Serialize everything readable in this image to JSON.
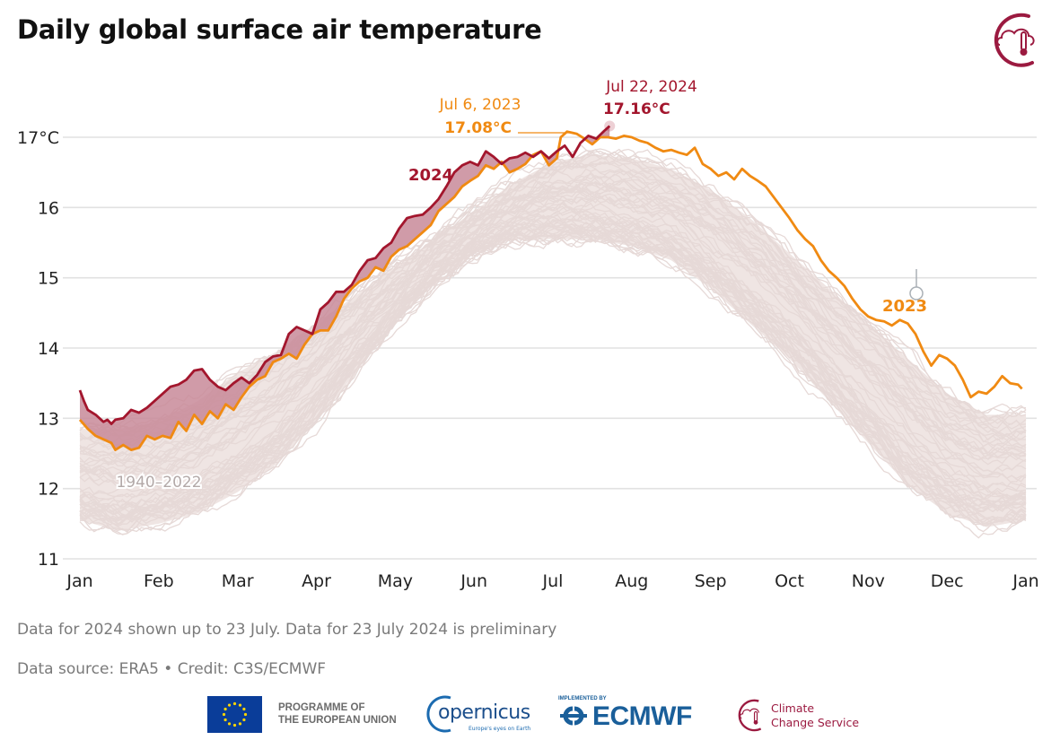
{
  "title": "Daily global surface air temperature",
  "notes": {
    "line1": "Data for 2024 shown up to 23 July. Data for 23 July 2024 is preliminary",
    "line2": "Data source: ERA5 • Credit: C3S/ECMWF"
  },
  "logos": {
    "eu_text_line1": "PROGRAMME OF",
    "eu_text_line2": "THE EUROPEAN UNION",
    "copernicus": "opernicus",
    "copernicus_sub": "Europe's eyes on Earth",
    "ecmwf_impl": "IMPLEMENTED BY",
    "ecmwf": "ECMWF",
    "c3s_line1": "Climate",
    "c3s_line2": "Change Service",
    "top_icon": "c3s-thermometer-cloud-icon"
  },
  "colors": {
    "y2023": "#f08a12",
    "y2024": "#a3162d",
    "fill_2024_above": "#c88a99",
    "historical": "#e6d9d7",
    "grid": "#e2e2e2",
    "text": "#222222",
    "note": "#7a7a7a"
  },
  "chart_data": {
    "type": "line",
    "title": "Daily global surface air temperature",
    "xlabel": "",
    "ylabel": "°C",
    "ylim": [
      11,
      17.2
    ],
    "xlim_months": [
      0,
      12
    ],
    "grid": true,
    "yticks": [
      11,
      12,
      13,
      14,
      15,
      16,
      17
    ],
    "ytick_labels": [
      "11",
      "12",
      "13",
      "14",
      "15",
      "16",
      "17°C"
    ],
    "xtick_labels": [
      "Jan",
      "Feb",
      "Mar",
      "Apr",
      "May",
      "Jun",
      "Jul",
      "Aug",
      "Sep",
      "Oct",
      "Nov",
      "Dec",
      "Jan"
    ],
    "historical_label": "1940–2022",
    "historical_band": {
      "month": [
        0,
        0.5,
        1,
        1.5,
        2,
        2.5,
        3,
        3.5,
        4,
        4.5,
        5,
        5.5,
        6,
        6.5,
        7,
        7.5,
        8,
        8.5,
        9,
        9.5,
        10,
        10.5,
        11,
        11.5,
        12
      ],
      "upper": [
        12.9,
        12.9,
        13.0,
        13.3,
        13.7,
        14.0,
        14.4,
        14.8,
        15.2,
        15.6,
        16.0,
        16.4,
        16.7,
        16.8,
        16.75,
        16.6,
        16.3,
        15.9,
        15.4,
        14.9,
        14.4,
        13.9,
        13.4,
        13.1,
        13.1
      ],
      "lower": [
        11.5,
        11.35,
        11.45,
        11.6,
        11.9,
        12.3,
        12.9,
        13.6,
        14.3,
        14.9,
        15.3,
        15.5,
        15.5,
        15.5,
        15.4,
        15.2,
        14.8,
        14.3,
        13.8,
        13.2,
        12.6,
        12.0,
        11.6,
        11.4,
        11.5
      ]
    },
    "series": [
      {
        "name": "2023",
        "label": "2023",
        "month": [
          0,
          0.1,
          0.2,
          0.3,
          0.4,
          0.45,
          0.55,
          0.65,
          0.75,
          0.85,
          0.95,
          1.05,
          1.15,
          1.25,
          1.35,
          1.45,
          1.55,
          1.65,
          1.75,
          1.85,
          1.95,
          2.05,
          2.15,
          2.25,
          2.35,
          2.45,
          2.55,
          2.65,
          2.75,
          2.85,
          2.95,
          3.05,
          3.15,
          3.25,
          3.35,
          3.45,
          3.55,
          3.65,
          3.75,
          3.85,
          3.95,
          4.05,
          4.15,
          4.25,
          4.35,
          4.45,
          4.55,
          4.65,
          4.75,
          4.85,
          4.95,
          5.05,
          5.15,
          5.25,
          5.35,
          5.45,
          5.55,
          5.65,
          5.75,
          5.85,
          5.95,
          6.05,
          6.1,
          6.18,
          6.3,
          6.4,
          6.5,
          6.6,
          6.7,
          6.8,
          6.9,
          7.0,
          7.1,
          7.2,
          7.3,
          7.4,
          7.5,
          7.6,
          7.7,
          7.8,
          7.9,
          8.0,
          8.1,
          8.2,
          8.3,
          8.4,
          8.5,
          8.6,
          8.7,
          8.8,
          8.9,
          9.0,
          9.1,
          9.2,
          9.3,
          9.4,
          9.5,
          9.6,
          9.7,
          9.8,
          9.9,
          10.0,
          10.1,
          10.2,
          10.3,
          10.4,
          10.5,
          10.6,
          10.7,
          10.8,
          10.9,
          11.0,
          11.1,
          11.2,
          11.3,
          11.4,
          11.5,
          11.6,
          11.7,
          11.8,
          11.9,
          11.95
        ],
        "values": [
          12.98,
          12.85,
          12.75,
          12.7,
          12.65,
          12.55,
          12.62,
          12.55,
          12.58,
          12.75,
          12.7,
          12.75,
          12.72,
          12.95,
          12.82,
          13.05,
          12.92,
          13.1,
          13.0,
          13.2,
          13.12,
          13.3,
          13.45,
          13.55,
          13.6,
          13.8,
          13.85,
          13.92,
          13.85,
          14.05,
          14.2,
          14.25,
          14.25,
          14.45,
          14.7,
          14.85,
          14.95,
          15.0,
          15.15,
          15.1,
          15.3,
          15.4,
          15.45,
          15.55,
          15.65,
          15.75,
          15.95,
          16.05,
          16.15,
          16.3,
          16.38,
          16.45,
          16.6,
          16.55,
          16.65,
          16.5,
          16.55,
          16.62,
          16.75,
          16.8,
          16.6,
          16.7,
          17.0,
          17.08,
          17.05,
          16.98,
          16.9,
          17.0,
          17.0,
          16.98,
          17.02,
          17.0,
          16.95,
          16.92,
          16.85,
          16.8,
          16.82,
          16.78,
          16.75,
          16.85,
          16.62,
          16.55,
          16.45,
          16.5,
          16.4,
          16.55,
          16.45,
          16.38,
          16.3,
          16.15,
          16.0,
          15.85,
          15.68,
          15.55,
          15.45,
          15.25,
          15.1,
          15.0,
          14.88,
          14.7,
          14.55,
          14.45,
          14.4,
          14.38,
          14.32,
          14.4,
          14.35,
          14.2,
          13.95,
          13.75,
          13.9,
          13.85,
          13.75,
          13.55,
          13.3,
          13.38,
          13.35,
          13.45,
          13.6,
          13.5,
          13.48,
          13.42
        ]
      },
      {
        "name": "2024",
        "label": "2024",
        "month": [
          0,
          0.05,
          0.1,
          0.2,
          0.3,
          0.35,
          0.4,
          0.45,
          0.55,
          0.65,
          0.75,
          0.85,
          0.95,
          1.05,
          1.15,
          1.25,
          1.35,
          1.45,
          1.55,
          1.65,
          1.75,
          1.85,
          1.95,
          2.05,
          2.15,
          2.25,
          2.35,
          2.45,
          2.55,
          2.65,
          2.75,
          2.85,
          2.95,
          3.05,
          3.15,
          3.25,
          3.35,
          3.45,
          3.55,
          3.65,
          3.75,
          3.85,
          3.95,
          4.05,
          4.15,
          4.25,
          4.35,
          4.45,
          4.55,
          4.65,
          4.75,
          4.85,
          4.95,
          5.05,
          5.15,
          5.25,
          5.35,
          5.45,
          5.55,
          5.65,
          5.75,
          5.85,
          5.95,
          6.05,
          6.15,
          6.25,
          6.35,
          6.45,
          6.55,
          6.65,
          6.72
        ],
        "values": [
          13.4,
          13.25,
          13.12,
          13.05,
          12.95,
          12.98,
          12.92,
          12.98,
          13.0,
          13.12,
          13.08,
          13.15,
          13.25,
          13.35,
          13.45,
          13.48,
          13.55,
          13.68,
          13.7,
          13.55,
          13.45,
          13.4,
          13.5,
          13.58,
          13.5,
          13.62,
          13.8,
          13.88,
          13.9,
          14.2,
          14.3,
          14.25,
          14.2,
          14.55,
          14.65,
          14.8,
          14.8,
          14.9,
          15.1,
          15.25,
          15.28,
          15.42,
          15.5,
          15.7,
          15.85,
          15.88,
          15.9,
          16.0,
          16.12,
          16.3,
          16.5,
          16.6,
          16.65,
          16.6,
          16.8,
          16.72,
          16.62,
          16.7,
          16.72,
          16.78,
          16.72,
          16.8,
          16.7,
          16.8,
          16.88,
          16.72,
          16.92,
          17.02,
          16.98,
          17.09,
          17.16
        ]
      }
    ],
    "annotations": [
      {
        "series": "2023",
        "date": "Jul 6, 2023",
        "value_label": "17.08°C",
        "month": 6.18,
        "value": 17.08
      },
      {
        "series": "2024",
        "date": "Jul 22, 2024",
        "value_label": "17.16°C",
        "month": 6.72,
        "value": 17.16
      }
    ]
  }
}
